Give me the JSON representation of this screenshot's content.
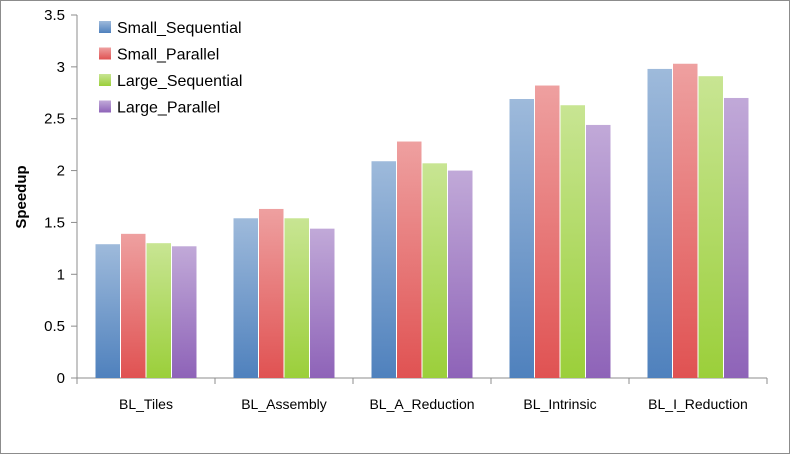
{
  "chart_data": {
    "type": "bar",
    "title": "",
    "xlabel": "",
    "ylabel": "Speedup",
    "ylim": [
      0,
      3.5
    ],
    "yticks": [
      "0",
      "0.5",
      "1",
      "1.5",
      "2",
      "2.5",
      "3",
      "3.5"
    ],
    "grid": false,
    "legend_position": "top-left",
    "categories": [
      "BL_Tiles",
      "BL_Assembly",
      "BL_A_Reduction",
      "BL_Intrinsic",
      "BL_I_Reduction"
    ],
    "series": [
      {
        "name": "Small_Sequential",
        "color": "#4f81bd",
        "values": [
          1.29,
          1.54,
          2.09,
          2.69,
          2.98
        ]
      },
      {
        "name": "Small_Parallel",
        "color": "#e05252",
        "values": [
          1.39,
          1.63,
          2.28,
          2.82,
          3.03
        ]
      },
      {
        "name": "Large_Sequential",
        "color": "#9bcf3a",
        "values": [
          1.3,
          1.54,
          2.07,
          2.63,
          2.91
        ]
      },
      {
        "name": "Large_Parallel",
        "color": "#8e63b8",
        "values": [
          1.27,
          1.44,
          2.0,
          2.44,
          2.7
        ]
      }
    ]
  }
}
